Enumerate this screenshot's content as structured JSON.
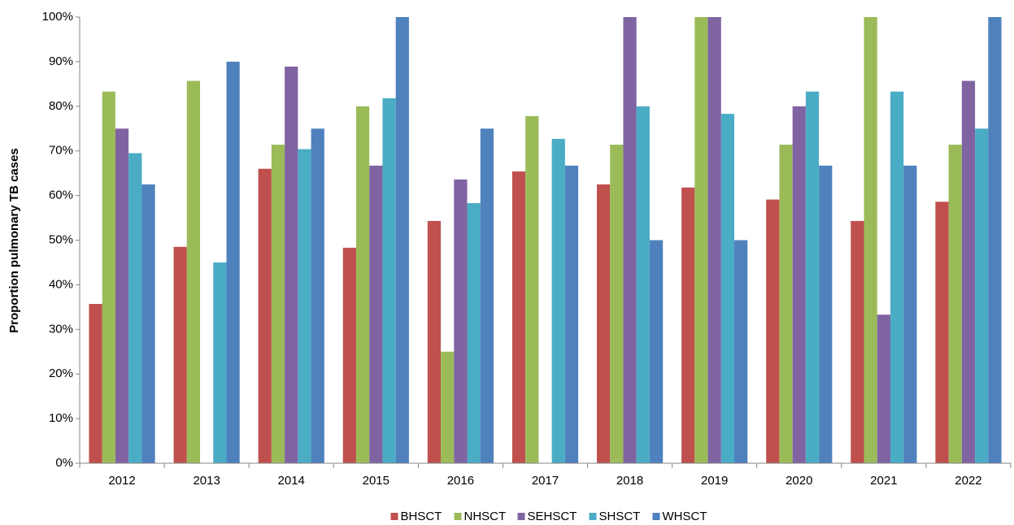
{
  "chart_data": {
    "type": "bar",
    "y_label": "Proportion pulmonary TB cases",
    "categories": [
      "2012",
      "2013",
      "2014",
      "2015",
      "2016",
      "2017",
      "2018",
      "2019",
      "2020",
      "2021",
      "2022"
    ],
    "series": [
      {
        "name": "BHSCT",
        "color": "#c0504d",
        "values": [
          35.7,
          48.5,
          66,
          48.3,
          54.3,
          65.4,
          62.5,
          61.8,
          59.1,
          54.3,
          58.6
        ]
      },
      {
        "name": "NHSCT",
        "color": "#9bbb59",
        "values": [
          83.3,
          85.7,
          71.4,
          80,
          25,
          77.8,
          71.4,
          100,
          71.4,
          100,
          71.4
        ]
      },
      {
        "name": "SEHSCT",
        "color": "#8064a2",
        "values": [
          75,
          0,
          88.9,
          66.7,
          63.6,
          0,
          100,
          100,
          80,
          33.3,
          85.7
        ]
      },
      {
        "name": "SHSCT",
        "color": "#4bacc6",
        "values": [
          69.5,
          45,
          70.4,
          81.8,
          58.3,
          72.7,
          80,
          78.3,
          83.3,
          83.3,
          75
        ]
      },
      {
        "name": "WHSCT",
        "color": "#4f81bd",
        "values": [
          62.5,
          90,
          75,
          100,
          75,
          66.7,
          50,
          50,
          66.7,
          66.7,
          100
        ]
      }
    ],
    "ylim": [
      0,
      100
    ],
    "yticks": [
      {
        "value": 0,
        "label": "0%"
      },
      {
        "value": 10,
        "label": "10%"
      },
      {
        "value": 20,
        "label": "20%"
      },
      {
        "value": 30,
        "label": "30%"
      },
      {
        "value": 40,
        "label": "40%"
      },
      {
        "value": 50,
        "label": "50%"
      },
      {
        "value": 60,
        "label": "60%"
      },
      {
        "value": 70,
        "label": "70%"
      },
      {
        "value": 80,
        "label": "80%"
      },
      {
        "value": 90,
        "label": "90%"
      },
      {
        "value": 100,
        "label": "100%"
      }
    ],
    "grid": false,
    "legend": "bottom"
  }
}
